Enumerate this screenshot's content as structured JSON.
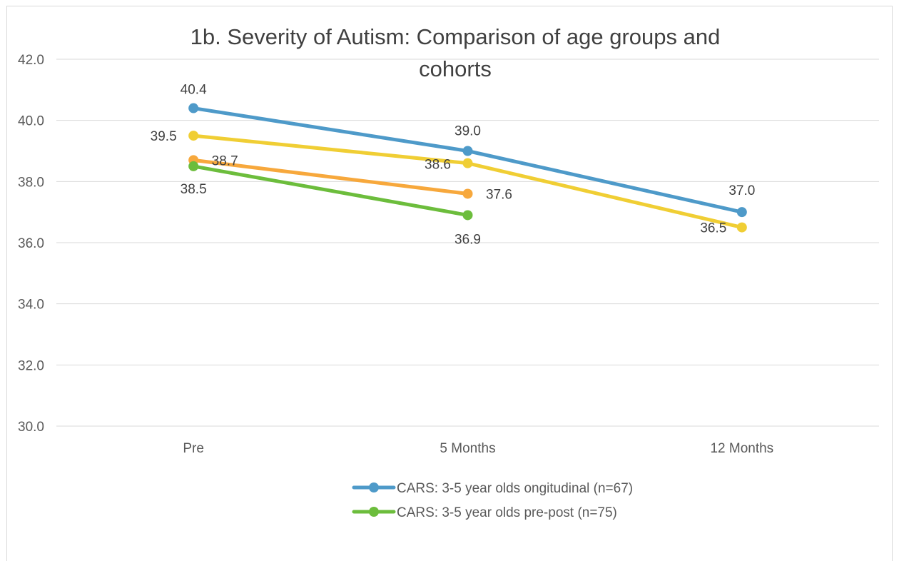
{
  "chart_data": {
    "type": "line",
    "title_line1": "1b. Severity of Autism: Comparison of age groups and",
    "title_line2": "cohorts",
    "categories": [
      "Pre",
      "5 Months",
      "12 Months"
    ],
    "ylim": [
      30,
      42
    ],
    "yticks": [
      "30.0",
      "32.0",
      "34.0",
      "36.0",
      "38.0",
      "40.0",
      "42.0"
    ],
    "grid": true,
    "legend_position": "bottom",
    "series": [
      {
        "name": "CARS: 3-5 year olds ongitudinal (n=67)",
        "color": "#4e9ac9",
        "values": [
          40.4,
          39.0,
          37.0
        ],
        "labels": [
          "40.4",
          "39.0",
          "37.0"
        ],
        "in_legend": true
      },
      {
        "name": "",
        "color": "#f0ce34",
        "values": [
          39.5,
          38.6,
          36.5
        ],
        "labels": [
          "39.5",
          "38.6",
          "36.5"
        ],
        "in_legend": false
      },
      {
        "name": "",
        "color": "#f7a83c",
        "values": [
          38.7,
          37.6,
          null
        ],
        "labels": [
          "38.7",
          "37.6",
          ""
        ],
        "in_legend": false
      },
      {
        "name": "CARS: 3-5 year olds pre-post (n=75)",
        "color": "#6cbd3c",
        "values": [
          38.5,
          36.9,
          null
        ],
        "labels": [
          "38.5",
          "36.9",
          ""
        ],
        "in_legend": true
      }
    ]
  }
}
